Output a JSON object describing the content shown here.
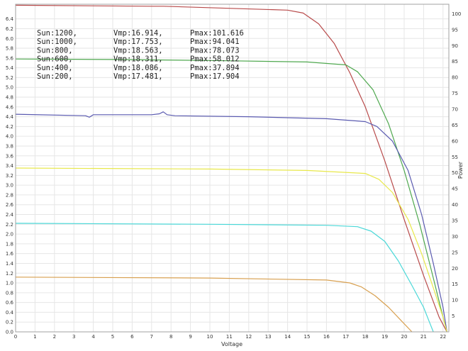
{
  "chart_data": {
    "type": "line",
    "title": "",
    "xlabel": "Voltage",
    "ylabel_left": "",
    "ylabel_right": "Power",
    "xlim": [
      0,
      22.3
    ],
    "ylim_left": [
      0,
      6.7
    ],
    "ylim_right": [
      0,
      103
    ],
    "grid": true,
    "x_ticks": [
      "0",
      "1",
      "2",
      "3",
      "4",
      "5",
      "6",
      "7",
      "8",
      "9",
      "10",
      "11",
      "12",
      "13",
      "14",
      "15",
      "16",
      "17",
      "18",
      "19",
      "20",
      "21",
      "22"
    ],
    "y_left_ticks": [
      "0.0",
      "0.2",
      "0.4",
      "0.6",
      "0.8",
      "1.0",
      "1.2",
      "1.4",
      "1.6",
      "1.8",
      "2.0",
      "2.2",
      "2.4",
      "2.6",
      "2.8",
      "3.0",
      "3.2",
      "3.4",
      "3.6",
      "3.8",
      "4.0",
      "4.2",
      "4.4",
      "4.6",
      "4.8",
      "5.0",
      "5.2",
      "5.4",
      "5.6",
      "5.8",
      "6.0",
      "6.2",
      "6.4"
    ],
    "y_right_ticks": [
      "5",
      "10",
      "15",
      "20",
      "25",
      "30",
      "35",
      "40",
      "45",
      "50",
      "55",
      "60",
      "65",
      "70",
      "75",
      "80",
      "85",
      "90",
      "95",
      "100"
    ],
    "annotations": [
      {
        "sun": "Sun:1200,",
        "vmp": "Vmp:16.914,",
        "pmax": "Pmax:101.616"
      },
      {
        "sun": "Sun:1000,",
        "vmp": "Vmp:17.753,",
        "pmax": "Pmax:94.041"
      },
      {
        "sun": "Sun:800,",
        "vmp": "Vmp:18.563,",
        "pmax": "Pmax:78.073"
      },
      {
        "sun": "Sun:600,",
        "vmp": "Vmp:18.311,",
        "pmax": "Pmax:58.012"
      },
      {
        "sun": "Sun:400,",
        "vmp": "Vmp:18.086,",
        "pmax": "Pmax:37.894"
      },
      {
        "sun": "Sun:200,",
        "vmp": "Vmp:17.481,",
        "pmax": "Pmax:17.904"
      }
    ],
    "series": [
      {
        "color": "#b84a4a",
        "points": [
          [
            0,
            6.68
          ],
          [
            7,
            6.66
          ],
          [
            7.6,
            6.66
          ],
          [
            14,
            6.58
          ],
          [
            14.8,
            6.52
          ],
          [
            15.6,
            6.3
          ],
          [
            16.4,
            5.9
          ],
          [
            17.2,
            5.3
          ],
          [
            18,
            4.6
          ],
          [
            19,
            3.5
          ],
          [
            20,
            2.3
          ],
          [
            21,
            1.15
          ],
          [
            21.8,
            0.3
          ],
          [
            22.2,
            0
          ]
        ]
      },
      {
        "color": "#4fa84f",
        "points": [
          [
            0,
            5.58
          ],
          [
            5,
            5.57
          ],
          [
            10,
            5.55
          ],
          [
            15,
            5.52
          ],
          [
            17,
            5.46
          ],
          [
            17.6,
            5.32
          ],
          [
            18.4,
            4.95
          ],
          [
            19.2,
            4.25
          ],
          [
            20,
            3.3
          ],
          [
            20.8,
            2.2
          ],
          [
            21.5,
            1.1
          ],
          [
            22,
            0.3
          ],
          [
            22.2,
            0
          ]
        ]
      },
      {
        "color": "#5a5ab0",
        "points": [
          [
            0,
            4.45
          ],
          [
            3.6,
            4.42
          ],
          [
            3.8,
            4.39
          ],
          [
            4,
            4.44
          ],
          [
            7,
            4.44
          ],
          [
            7.4,
            4.46
          ],
          [
            7.6,
            4.5
          ],
          [
            7.8,
            4.44
          ],
          [
            8.2,
            4.42
          ],
          [
            12,
            4.4
          ],
          [
            16,
            4.36
          ],
          [
            18,
            4.3
          ],
          [
            18.6,
            4.2
          ],
          [
            19.4,
            3.9
          ],
          [
            20.2,
            3.3
          ],
          [
            20.9,
            2.4
          ],
          [
            21.5,
            1.4
          ],
          [
            22,
            0.5
          ],
          [
            22.2,
            0
          ]
        ]
      },
      {
        "color": "#e8e84a",
        "points": [
          [
            0,
            3.35
          ],
          [
            10,
            3.33
          ],
          [
            15,
            3.3
          ],
          [
            18,
            3.24
          ],
          [
            18.7,
            3.12
          ],
          [
            19.4,
            2.85
          ],
          [
            20.2,
            2.3
          ],
          [
            20.9,
            1.6
          ],
          [
            21.5,
            0.9
          ],
          [
            22,
            0.3
          ],
          [
            22.2,
            0
          ]
        ]
      },
      {
        "color": "#4ad8d8",
        "points": [
          [
            0,
            2.22
          ],
          [
            10,
            2.2
          ],
          [
            16,
            2.18
          ],
          [
            17.6,
            2.15
          ],
          [
            18.3,
            2.06
          ],
          [
            19,
            1.85
          ],
          [
            19.7,
            1.45
          ],
          [
            20.4,
            0.95
          ],
          [
            21,
            0.5
          ],
          [
            21.3,
            0.2
          ],
          [
            21.5,
            0
          ]
        ]
      },
      {
        "color": "#d8a050",
        "points": [
          [
            0,
            1.12
          ],
          [
            10,
            1.1
          ],
          [
            16,
            1.06
          ],
          [
            17.2,
            1.0
          ],
          [
            17.8,
            0.92
          ],
          [
            18.5,
            0.74
          ],
          [
            19.2,
            0.5
          ],
          [
            19.8,
            0.25
          ],
          [
            20.4,
            0
          ]
        ]
      }
    ]
  }
}
